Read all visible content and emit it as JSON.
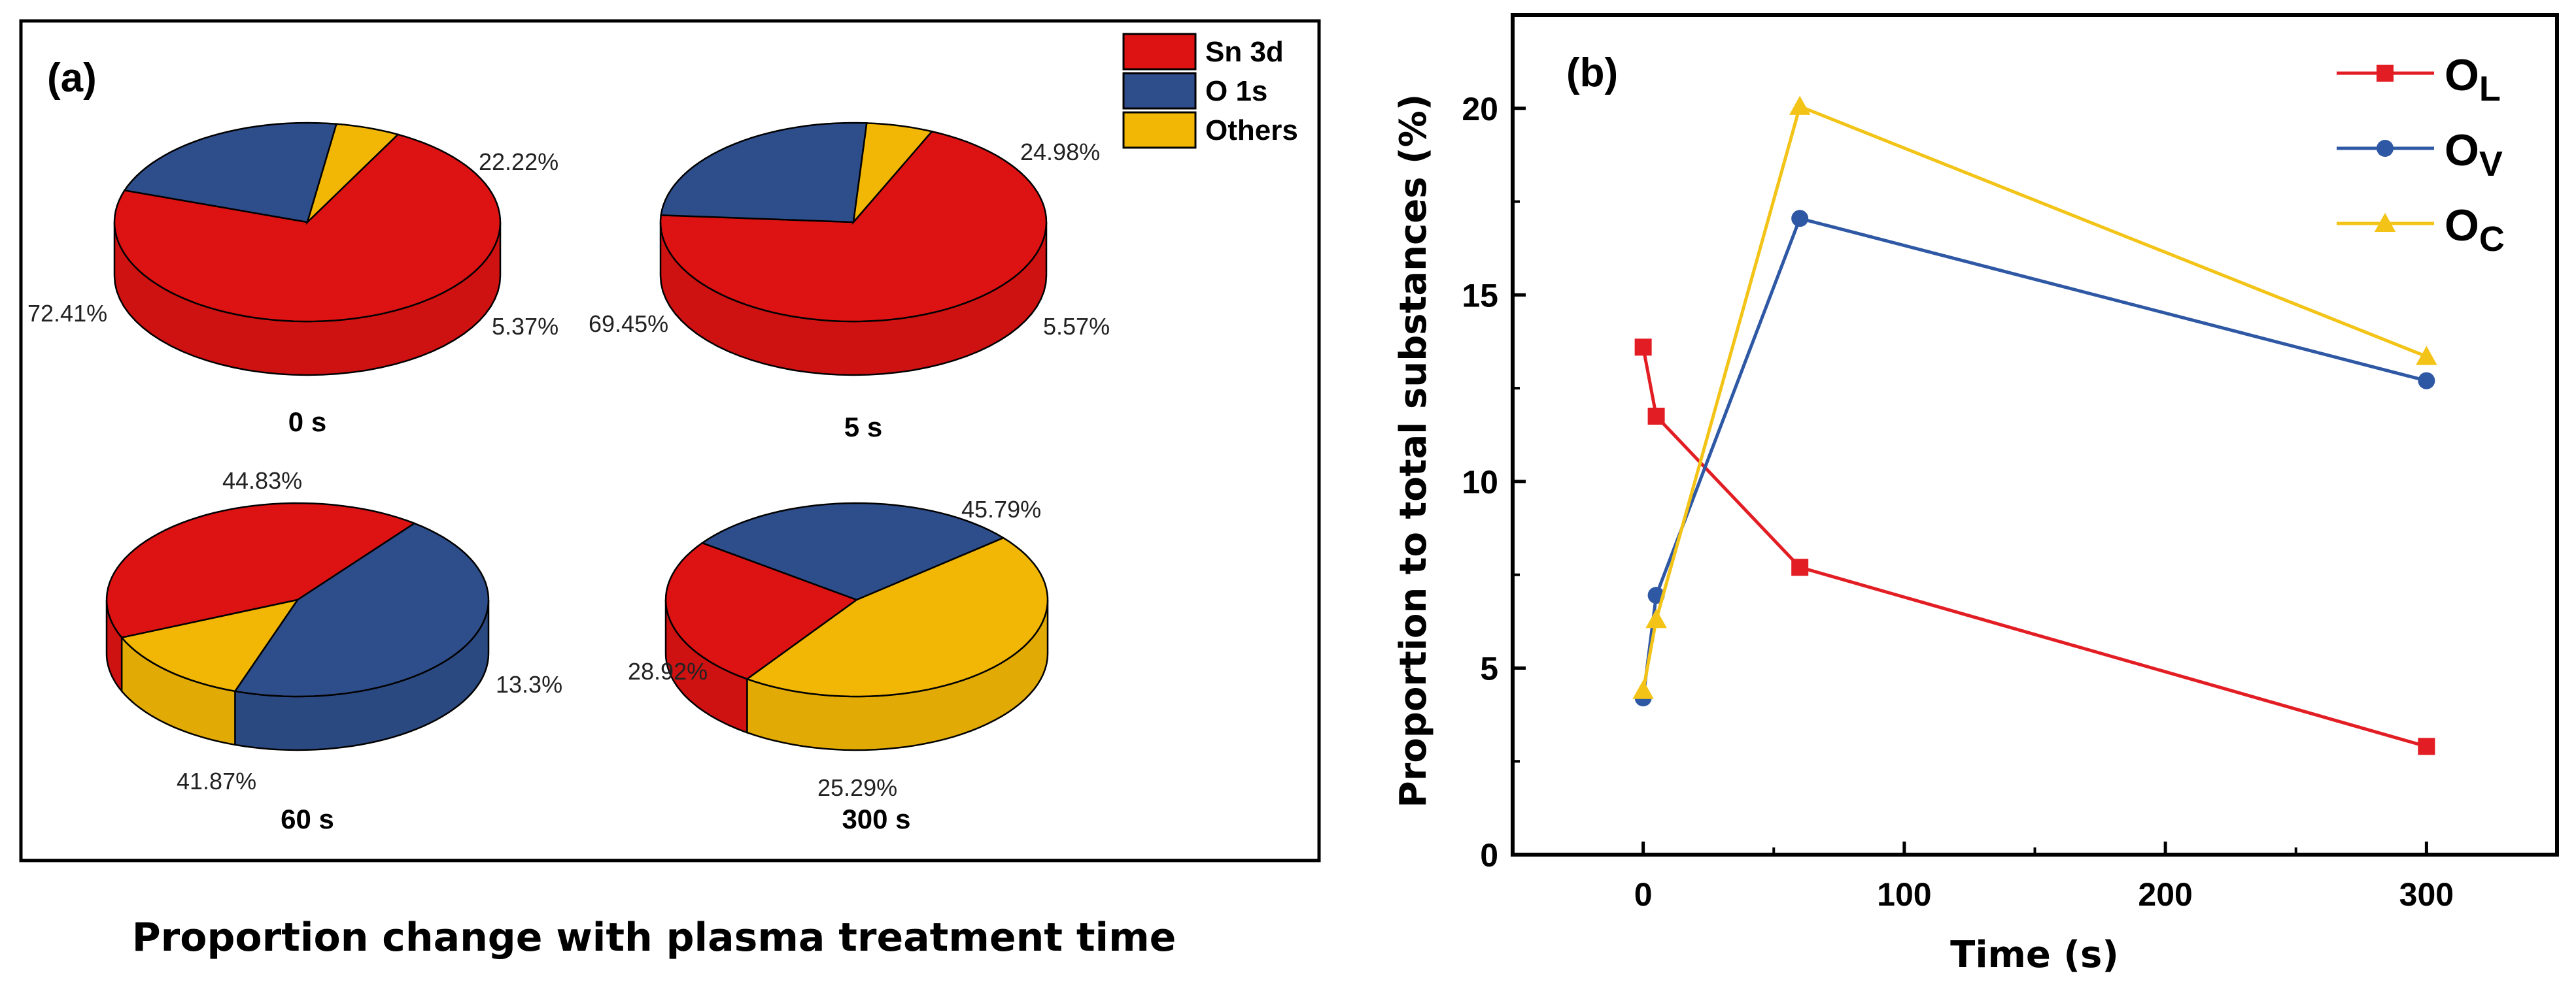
{
  "caption": "Proportion change with plasma treatment time",
  "colors": {
    "sn": "#dd1212",
    "o": "#2e4e8b",
    "others": "#f2b705",
    "ol": "#e21d24",
    "ov": "#2e57a4",
    "oc": "#f3c417"
  },
  "chart_data": [
    {
      "type": "pie",
      "panel": "(a)",
      "legend": [
        {
          "name": "Sn 3d",
          "color": "#dd1212"
        },
        {
          "name": "O 1s",
          "color": "#2e4e8b"
        },
        {
          "name": "Others",
          "color": "#f2b705"
        }
      ],
      "pies": [
        {
          "time": "0 s",
          "values": [
            72.41,
            22.22,
            5.37
          ],
          "labels": [
            "72.41%",
            "22.22%",
            "5.37%"
          ]
        },
        {
          "time": "5 s",
          "values": [
            69.45,
            24.98,
            5.57
          ],
          "labels": [
            "69.45%",
            "24.98%",
            "5.57%"
          ]
        },
        {
          "time": "60 s",
          "values": [
            41.87,
            44.83,
            13.3
          ],
          "labels": [
            "41.87%",
            "44.83%",
            "13.3%"
          ]
        },
        {
          "time": "300 s",
          "values": [
            25.29,
            28.92,
            45.79
          ],
          "labels": [
            "25.29%",
            "28.92%",
            "45.79%"
          ]
        }
      ]
    },
    {
      "type": "line",
      "panel": "(b)",
      "xlabel": "Time (s)",
      "ylabel": "Proportion to total substances (%)",
      "xlim": [
        -50,
        350
      ],
      "ylim": [
        0,
        22.5
      ],
      "xticks": [
        0,
        100,
        200,
        300
      ],
      "yticks": [
        0,
        5,
        10,
        15,
        20
      ],
      "x": [
        0,
        5,
        60,
        300
      ],
      "series": [
        {
          "name": "O",
          "sub": "L",
          "marker": "square",
          "color": "#e21d24",
          "values": [
            13.6,
            11.75,
            7.7,
            2.9
          ]
        },
        {
          "name": "O",
          "sub": "V",
          "marker": "circle",
          "color": "#2e57a4",
          "values": [
            4.2,
            6.95,
            17.05,
            12.7
          ]
        },
        {
          "name": "O",
          "sub": "C",
          "marker": "triangle",
          "color": "#f3c417",
          "values": [
            4.4,
            6.3,
            20.05,
            13.35
          ]
        }
      ]
    }
  ]
}
